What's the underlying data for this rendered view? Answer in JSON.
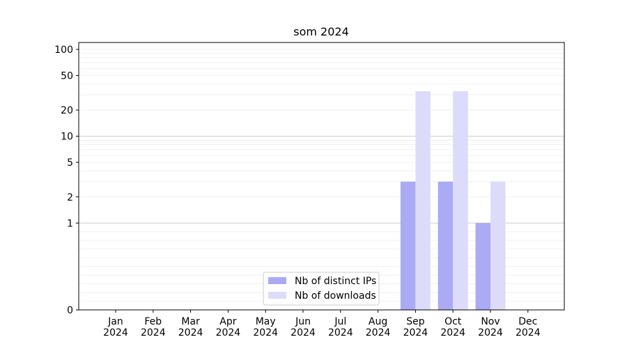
{
  "chart_data": {
    "type": "bar",
    "title": "som 2024",
    "xlabel": "",
    "ylabel": "",
    "yscale": "symlog",
    "ylim": [
      0,
      120
    ],
    "yticks": [
      {
        "value": 0,
        "label": "0"
      },
      {
        "value": 1,
        "label": "1"
      },
      {
        "value": 2,
        "label": "2"
      },
      {
        "value": 5,
        "label": "5"
      },
      {
        "value": 10,
        "label": "10"
      },
      {
        "value": 20,
        "label": "20"
      },
      {
        "value": 50,
        "label": "50"
      },
      {
        "value": 100,
        "label": "100"
      }
    ],
    "categories": [
      "Jan\n2024",
      "Feb\n2024",
      "Mar\n2024",
      "Apr\n2024",
      "May\n2024",
      "Jun\n2024",
      "Jul\n2024",
      "Aug\n2024",
      "Sep\n2024",
      "Oct\n2024",
      "Nov\n2024",
      "Dec\n2024"
    ],
    "series": [
      {
        "name": "Nb of distinct IPs",
        "color": "#aaaaf5",
        "values": [
          0,
          0,
          0,
          0,
          0,
          0,
          0,
          0,
          3,
          3,
          1,
          0
        ]
      },
      {
        "name": "Nb of downloads",
        "color": "#dcdcfa",
        "values": [
          0,
          0,
          0,
          0,
          0,
          0,
          0,
          0,
          33,
          33,
          3,
          0
        ]
      }
    ],
    "grid": true,
    "legend": "lower center"
  }
}
